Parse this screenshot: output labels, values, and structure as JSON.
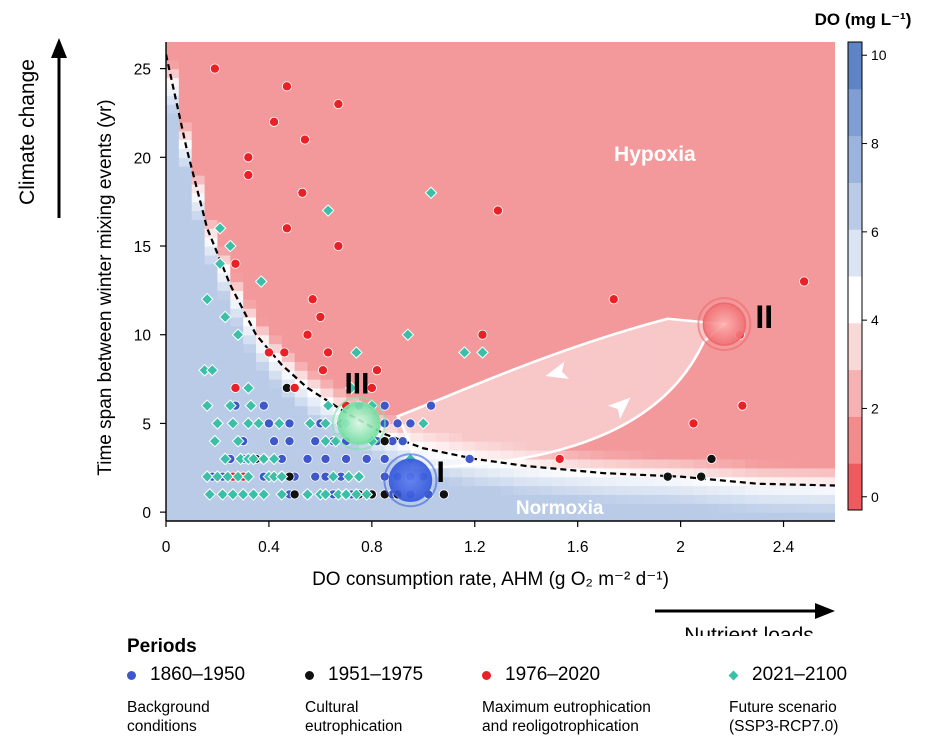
{
  "colors": {
    "hypoxia": "#f3999b",
    "normoxia": "#b9cbe7",
    "p1": "#3f57c9",
    "p2": "#111111",
    "p3": "#ea2027",
    "p4": "#3cbfa8",
    "cluster_I": "#3e63e0",
    "cluster_II": "#ee6a6e",
    "cluster_III": "#7be2a8"
  },
  "chart_data": {
    "type": "scatter",
    "title": "",
    "xlabel": "DO consumption rate, AHM (g O₂ m⁻² d⁻¹)",
    "ylabel": "Time span between winter mixing events (yr)",
    "xlim": [
      0,
      2.6
    ],
    "ylim": [
      -0.5,
      26.5
    ],
    "x_ticks": [
      "0",
      "0.4",
      "0.8",
      "1.2",
      "1.6",
      "2",
      "2.4"
    ],
    "x_tick_values": [
      0,
      0.4,
      0.8,
      1.2,
      1.6,
      2.0,
      2.4
    ],
    "y_ticks": [
      "0",
      "5",
      "10",
      "15",
      "20",
      "25"
    ],
    "y_tick_values": [
      0,
      5,
      10,
      15,
      20,
      25
    ],
    "grid": false,
    "colorbar": {
      "label": "DO (mg L⁻¹)",
      "ticks": [
        "0",
        "2",
        "4",
        "6",
        "8",
        "10"
      ],
      "range": [
        -0.3,
        10.3
      ],
      "colors": [
        "#ee5a5e",
        "#f38a8c",
        "#f6b2b3",
        "#f9d8d8",
        "#ffffff",
        "#dbe4f2",
        "#b9cbe7",
        "#9bb4dd",
        "#7f9ed2",
        "#5f84c5"
      ]
    },
    "threshold_curve": [
      [
        0.0,
        25.8
      ],
      [
        0.08,
        20.5
      ],
      [
        0.16,
        16.0
      ],
      [
        0.25,
        12.8
      ],
      [
        0.35,
        10.0
      ],
      [
        0.45,
        8.3
      ],
      [
        0.55,
        7.0
      ],
      [
        0.7,
        5.6
      ],
      [
        0.85,
        4.4
      ],
      [
        1.0,
        3.6
      ],
      [
        1.2,
        3.0
      ],
      [
        1.4,
        2.6
      ],
      [
        1.7,
        2.2
      ],
      [
        2.0,
        2.0
      ],
      [
        2.3,
        1.6
      ],
      [
        2.6,
        1.5
      ]
    ],
    "annotations": {
      "hypoxia": "Hypoxia",
      "normoxia": "Normoxia",
      "climate_axis": "Climate change",
      "nutrient_axis": "Nutrient loads",
      "cluster_I": "I",
      "cluster_II": "II",
      "cluster_III": "III"
    },
    "clusters": [
      {
        "label": "I",
        "x": 0.95,
        "y": 1.8
      },
      {
        "label": "II",
        "x": 2.17,
        "y": 10.6
      },
      {
        "label": "III",
        "x": 0.75,
        "y": 5.0
      }
    ],
    "series": [
      {
        "name": "1860–1950",
        "marker": "circle",
        "points": [
          [
            0.18,
            2
          ],
          [
            0.22,
            2
          ],
          [
            0.3,
            2
          ],
          [
            0.38,
            2
          ],
          [
            0.45,
            2
          ],
          [
            0.5,
            2
          ],
          [
            0.58,
            2
          ],
          [
            0.62,
            2
          ],
          [
            0.68,
            2
          ],
          [
            0.75,
            2
          ],
          [
            0.85,
            2
          ],
          [
            0.9,
            2
          ],
          [
            0.95,
            2
          ],
          [
            1.0,
            2
          ],
          [
            0.48,
            1
          ],
          [
            0.55,
            1
          ],
          [
            0.65,
            1
          ],
          [
            0.7,
            1
          ],
          [
            0.72,
            1
          ],
          [
            0.8,
            1
          ],
          [
            0.88,
            1
          ],
          [
            0.95,
            1
          ],
          [
            1.02,
            1
          ],
          [
            0.25,
            3
          ],
          [
            0.3,
            3
          ],
          [
            0.38,
            3
          ],
          [
            0.45,
            3
          ],
          [
            0.55,
            3
          ],
          [
            0.62,
            3
          ],
          [
            0.7,
            3
          ],
          [
            0.78,
            3
          ],
          [
            0.85,
            3
          ],
          [
            0.95,
            3
          ],
          [
            0.3,
            4
          ],
          [
            0.42,
            4
          ],
          [
            0.48,
            4
          ],
          [
            0.58,
            4
          ],
          [
            0.65,
            4
          ],
          [
            0.7,
            4
          ],
          [
            0.82,
            4
          ],
          [
            0.88,
            4
          ],
          [
            0.92,
            4
          ],
          [
            0.4,
            5
          ],
          [
            0.48,
            5
          ],
          [
            0.6,
            5
          ],
          [
            0.68,
            5
          ],
          [
            0.85,
            5
          ],
          [
            0.9,
            5
          ],
          [
            0.95,
            5
          ],
          [
            0.75,
            6
          ],
          [
            0.85,
            6
          ],
          [
            1.03,
            6
          ],
          [
            0.27,
            6
          ],
          [
            0.38,
            6
          ],
          [
            1.18,
            3
          ]
        ]
      },
      {
        "name": "1951–1975",
        "marker": "circle",
        "points": [
          [
            0.5,
            1
          ],
          [
            0.7,
            1
          ],
          [
            0.75,
            1
          ],
          [
            0.8,
            1
          ],
          [
            0.85,
            1
          ],
          [
            0.9,
            1
          ],
          [
            1.08,
            1
          ],
          [
            0.48,
            2
          ],
          [
            0.35,
            3
          ],
          [
            0.85,
            4
          ],
          [
            0.47,
            7
          ],
          [
            1.95,
            2
          ],
          [
            2.08,
            2
          ],
          [
            2.12,
            3
          ]
        ]
      },
      {
        "name": "1976–2020",
        "marker": "circle",
        "points": [
          [
            0.19,
            25
          ],
          [
            0.47,
            24
          ],
          [
            0.67,
            23
          ],
          [
            0.42,
            22
          ],
          [
            0.54,
            21
          ],
          [
            0.32,
            20
          ],
          [
            0.32,
            19
          ],
          [
            0.53,
            18
          ],
          [
            1.29,
            17
          ],
          [
            0.47,
            16
          ],
          [
            0.67,
            15
          ],
          [
            0.27,
            14
          ],
          [
            0.57,
            12
          ],
          [
            1.74,
            12
          ],
          [
            2.48,
            13
          ],
          [
            0.6,
            11
          ],
          [
            0.55,
            10
          ],
          [
            1.23,
            10
          ],
          [
            2.23,
            10
          ],
          [
            0.4,
            9
          ],
          [
            0.46,
            9
          ],
          [
            0.63,
            9
          ],
          [
            0.61,
            8
          ],
          [
            0.82,
            8
          ],
          [
            0.27,
            7
          ],
          [
            0.5,
            7
          ],
          [
            0.8,
            7
          ],
          [
            0.7,
            6
          ],
          [
            2.24,
            6
          ],
          [
            2.05,
            5
          ],
          [
            1.53,
            3
          ],
          [
            0.3,
            2
          ],
          [
            0.26,
            2
          ]
        ]
      },
      {
        "name": "2021–2100",
        "marker": "diamond",
        "points": [
          [
            1.03,
            18
          ],
          [
            0.63,
            17
          ],
          [
            0.21,
            16
          ],
          [
            0.25,
            15
          ],
          [
            0.21,
            14
          ],
          [
            0.37,
            13
          ],
          [
            0.16,
            12
          ],
          [
            0.23,
            11
          ],
          [
            0.28,
            10
          ],
          [
            0.94,
            10
          ],
          [
            1.16,
            9
          ],
          [
            1.23,
            9
          ],
          [
            0.74,
            9
          ],
          [
            0.15,
            8
          ],
          [
            0.18,
            8
          ],
          [
            0.72,
            7
          ],
          [
            0.32,
            7
          ],
          [
            0.16,
            6
          ],
          [
            0.25,
            6
          ],
          [
            0.33,
            6
          ],
          [
            0.63,
            6
          ],
          [
            0.8,
            6
          ],
          [
            0.2,
            5
          ],
          [
            0.26,
            5
          ],
          [
            0.32,
            5
          ],
          [
            0.36,
            5
          ],
          [
            0.44,
            5
          ],
          [
            0.56,
            5
          ],
          [
            0.62,
            5
          ],
          [
            0.7,
            5
          ],
          [
            1.0,
            5
          ],
          [
            0.19,
            4
          ],
          [
            0.28,
            4
          ],
          [
            0.62,
            4
          ],
          [
            0.66,
            4
          ],
          [
            0.8,
            4
          ],
          [
            0.23,
            3
          ],
          [
            0.29,
            3
          ],
          [
            0.32,
            3
          ],
          [
            0.34,
            3
          ],
          [
            0.38,
            3
          ],
          [
            0.42,
            3
          ],
          [
            0.95,
            3
          ],
          [
            0.16,
            2
          ],
          [
            0.2,
            2
          ],
          [
            0.24,
            2
          ],
          [
            0.28,
            2
          ],
          [
            0.32,
            2
          ],
          [
            0.4,
            2
          ],
          [
            0.42,
            2
          ],
          [
            0.45,
            2
          ],
          [
            0.65,
            2
          ],
          [
            0.71,
            2
          ],
          [
            0.75,
            2
          ],
          [
            0.17,
            1
          ],
          [
            0.22,
            1
          ],
          [
            0.26,
            1
          ],
          [
            0.3,
            1
          ],
          [
            0.34,
            1
          ],
          [
            0.38,
            1
          ],
          [
            0.45,
            1
          ],
          [
            0.55,
            1
          ],
          [
            0.6,
            1
          ],
          [
            0.62,
            1
          ],
          [
            0.67,
            1
          ],
          [
            0.7,
            1
          ],
          [
            0.74,
            1
          ],
          [
            0.78,
            1
          ]
        ]
      }
    ]
  },
  "legend": {
    "title": "Periods",
    "items": [
      {
        "marker": "circle",
        "color_key": "p1",
        "period": "1860–1950",
        "desc": "Background\nconditions"
      },
      {
        "marker": "circle",
        "color_key": "p2",
        "period": "1951–1975",
        "desc": "Cultural\neutrophication"
      },
      {
        "marker": "circle",
        "color_key": "p3",
        "period": "1976–2020",
        "desc": "Maximum eutrophication\nand reoligotrophication"
      },
      {
        "marker": "diamond",
        "color_key": "p4",
        "period": "2021–2100",
        "desc": "Future scenario\n(SSP3-RCP7.0)"
      }
    ]
  }
}
